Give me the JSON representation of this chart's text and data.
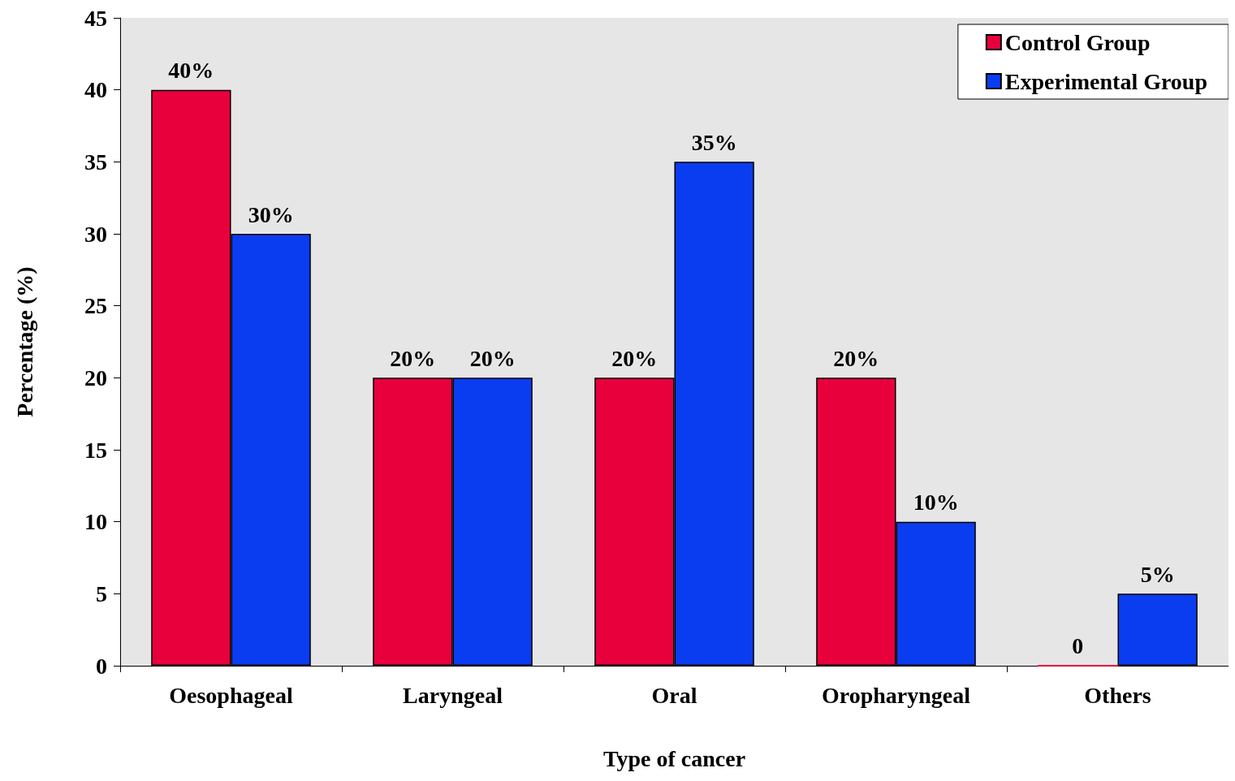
{
  "chart_data": {
    "type": "bar",
    "xlabel": "Type of cancer",
    "ylabel": "Percentage (%)",
    "categories": [
      "Oesophageal",
      "Laryngeal",
      "Oral",
      "Oropharyngeal",
      "Others"
    ],
    "series": [
      {
        "name": "Control Group",
        "color": "#e8003c",
        "values": [
          40,
          20,
          20,
          20,
          0
        ],
        "value_labels": [
          "40%",
          "20%",
          "20%",
          "20%",
          "0"
        ]
      },
      {
        "name": "Experimental Group",
        "color": "#0a3cf0",
        "values": [
          30,
          20,
          35,
          10,
          5
        ],
        "value_labels": [
          "30%",
          "20%",
          "35%",
          "10%",
          "5%"
        ]
      }
    ],
    "ylim": [
      0,
      45
    ],
    "yticks": [
      0,
      5,
      10,
      15,
      20,
      25,
      30,
      35,
      40,
      45
    ],
    "grid": false,
    "legend": "top right"
  }
}
